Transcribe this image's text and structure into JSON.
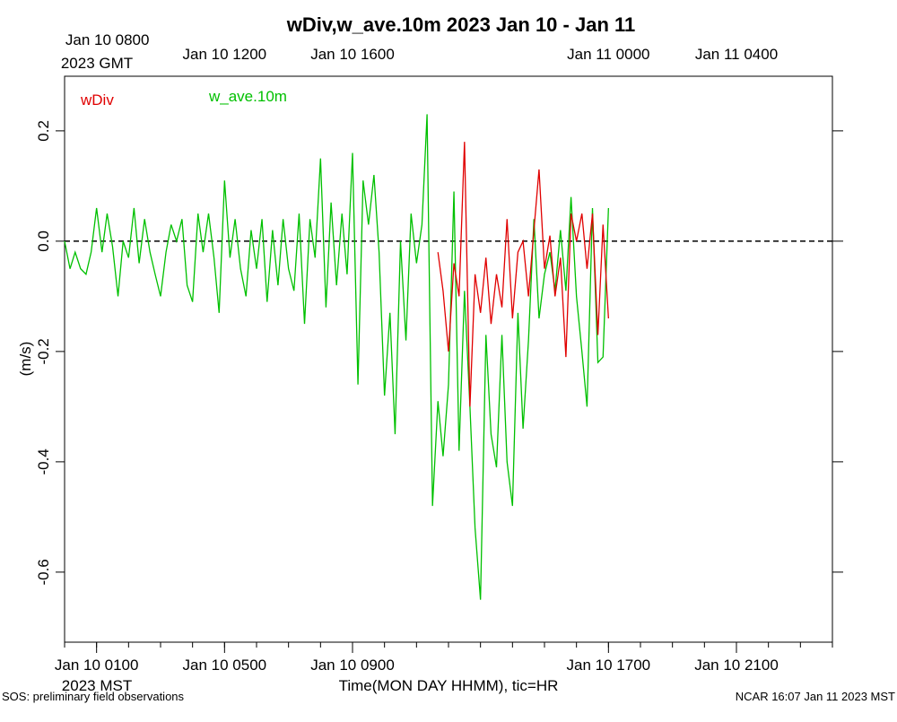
{
  "chart_data": {
    "type": "line",
    "title": "wDiv,w_ave.10m 2023 Jan 10 - Jan 11",
    "ylabel": "(m/s)",
    "xlabel": "Time(MON DAY HHMM), tic=HR",
    "x_timezone": "2023 MST",
    "x2_timezone": "2023 GMT",
    "footer_left": "SOS: preliminary field observations",
    "footer_right": "NCAR 16:07 Jan 11 2023 MST",
    "xlim": [
      0,
      24
    ],
    "ylim": [
      -0.727,
      0.299
    ],
    "xticks": [
      {
        "value": 1,
        "label": "Jan 10 0100"
      },
      {
        "value": 5,
        "label": "Jan 10 0500"
      },
      {
        "value": 9,
        "label": "Jan 10 0900"
      },
      {
        "value": 17,
        "label": "Jan 10 1700"
      },
      {
        "value": 21,
        "label": "Jan 10 2100"
      }
    ],
    "x2ticks": [
      {
        "value": 1,
        "label": "Jan 10 0800"
      },
      {
        "value": 5,
        "label": "Jan 10 1200"
      },
      {
        "value": 9,
        "label": "Jan 10 1600"
      },
      {
        "value": 17,
        "label": "Jan 11 0000"
      },
      {
        "value": 21,
        "label": "Jan 11 0400"
      }
    ],
    "xminorticks": [
      0,
      1,
      2,
      3,
      4,
      5,
      6,
      7,
      8,
      9,
      10,
      11,
      12,
      13,
      14,
      15,
      16,
      17,
      18,
      19,
      20,
      21,
      22,
      23,
      24
    ],
    "yticks": [
      0.2,
      {
        "value": 0,
        "label": "0.0"
      },
      -0.2,
      -0.4,
      -0.6
    ],
    "reference_line": 0,
    "x": [
      0,
      0.17,
      0.33,
      0.5,
      0.67,
      0.83,
      1,
      1.17,
      1.33,
      1.5,
      1.67,
      1.83,
      2,
      2.17,
      2.33,
      2.5,
      2.67,
      2.83,
      3,
      3.17,
      3.33,
      3.5,
      3.67,
      3.83,
      4,
      4.17,
      4.33,
      4.5,
      4.67,
      4.83,
      5,
      5.17,
      5.33,
      5.5,
      5.67,
      5.83,
      6,
      6.17,
      6.33,
      6.5,
      6.67,
      6.83,
      7,
      7.17,
      7.33,
      7.5,
      7.67,
      7.83,
      8,
      8.17,
      8.33,
      8.5,
      8.67,
      8.83,
      9,
      9.17,
      9.33,
      9.5,
      9.67,
      9.83,
      10,
      10.17,
      10.33,
      10.5,
      10.67,
      10.83,
      11,
      11.17,
      11.33,
      11.5,
      11.67,
      11.83,
      12,
      12.17,
      12.33,
      12.5,
      12.67,
      12.83,
      13,
      13.17,
      13.33,
      13.5,
      13.67,
      13.83,
      14,
      14.17,
      14.33,
      14.5,
      14.67,
      14.83,
      15,
      15.17,
      15.33,
      15.5,
      15.67,
      15.83,
      16,
      16.17,
      16.33,
      16.5,
      16.67,
      16.83,
      17
    ],
    "series": [
      {
        "name": "w_ave.10m",
        "color": "#00c000",
        "values": [
          0,
          -0.05,
          -0.02,
          -0.05,
          -0.06,
          -0.02,
          0.06,
          -0.02,
          0.05,
          -0.01,
          -0.1,
          0,
          -0.03,
          0.06,
          -0.04,
          0.04,
          -0.02,
          -0.06,
          -0.1,
          -0.02,
          0.03,
          0,
          0.04,
          -0.08,
          -0.11,
          0.05,
          -0.02,
          0.05,
          -0.03,
          -0.13,
          0.11,
          -0.03,
          0.04,
          -0.05,
          -0.1,
          0.02,
          -0.05,
          0.04,
          -0.11,
          0.02,
          -0.08,
          0.04,
          -0.05,
          -0.09,
          0.05,
          -0.15,
          0.04,
          -0.03,
          0.15,
          -0.12,
          0.07,
          -0.08,
          0.05,
          -0.06,
          0.16,
          -0.26,
          0.11,
          0.03,
          0.12,
          -0.02,
          -0.28,
          -0.13,
          -0.35,
          0,
          -0.18,
          0.05,
          -0.04,
          0.03,
          0.23,
          -0.48,
          -0.29,
          -0.39,
          -0.26,
          0.09,
          -0.38,
          -0.09,
          -0.3,
          -0.52,
          -0.65,
          -0.17,
          -0.35,
          -0.41,
          -0.17,
          -0.4,
          -0.48,
          -0.13,
          -0.34,
          -0.18,
          0.04,
          -0.14,
          -0.06,
          -0.02,
          -0.09,
          0.02,
          -0.09,
          0.08,
          -0.1,
          -0.2,
          -0.3,
          0.06,
          -0.22,
          -0.21,
          0.06
        ]
      },
      {
        "name": "wDiv",
        "color": "#e00000",
        "values": [
          null,
          null,
          null,
          null,
          null,
          null,
          null,
          null,
          null,
          null,
          null,
          null,
          null,
          null,
          null,
          null,
          null,
          null,
          null,
          null,
          null,
          null,
          null,
          null,
          null,
          null,
          null,
          null,
          null,
          null,
          null,
          null,
          null,
          null,
          null,
          null,
          null,
          null,
          null,
          null,
          null,
          null,
          null,
          null,
          null,
          null,
          null,
          null,
          null,
          null,
          null,
          null,
          null,
          null,
          null,
          null,
          null,
          null,
          null,
          null,
          null,
          null,
          null,
          null,
          null,
          null,
          null,
          null,
          null,
          null,
          -0.02,
          -0.09,
          -0.2,
          -0.04,
          -0.1,
          0.18,
          -0.3,
          -0.06,
          -0.13,
          -0.03,
          -0.15,
          -0.06,
          -0.12,
          0.04,
          -0.14,
          -0.02,
          0,
          -0.1,
          0.02,
          0.13,
          -0.05,
          0.01,
          -0.1,
          -0.03,
          -0.21,
          0.05,
          0,
          0.05,
          -0.05,
          0.05,
          -0.17,
          0.03,
          -0.14
        ]
      }
    ]
  }
}
